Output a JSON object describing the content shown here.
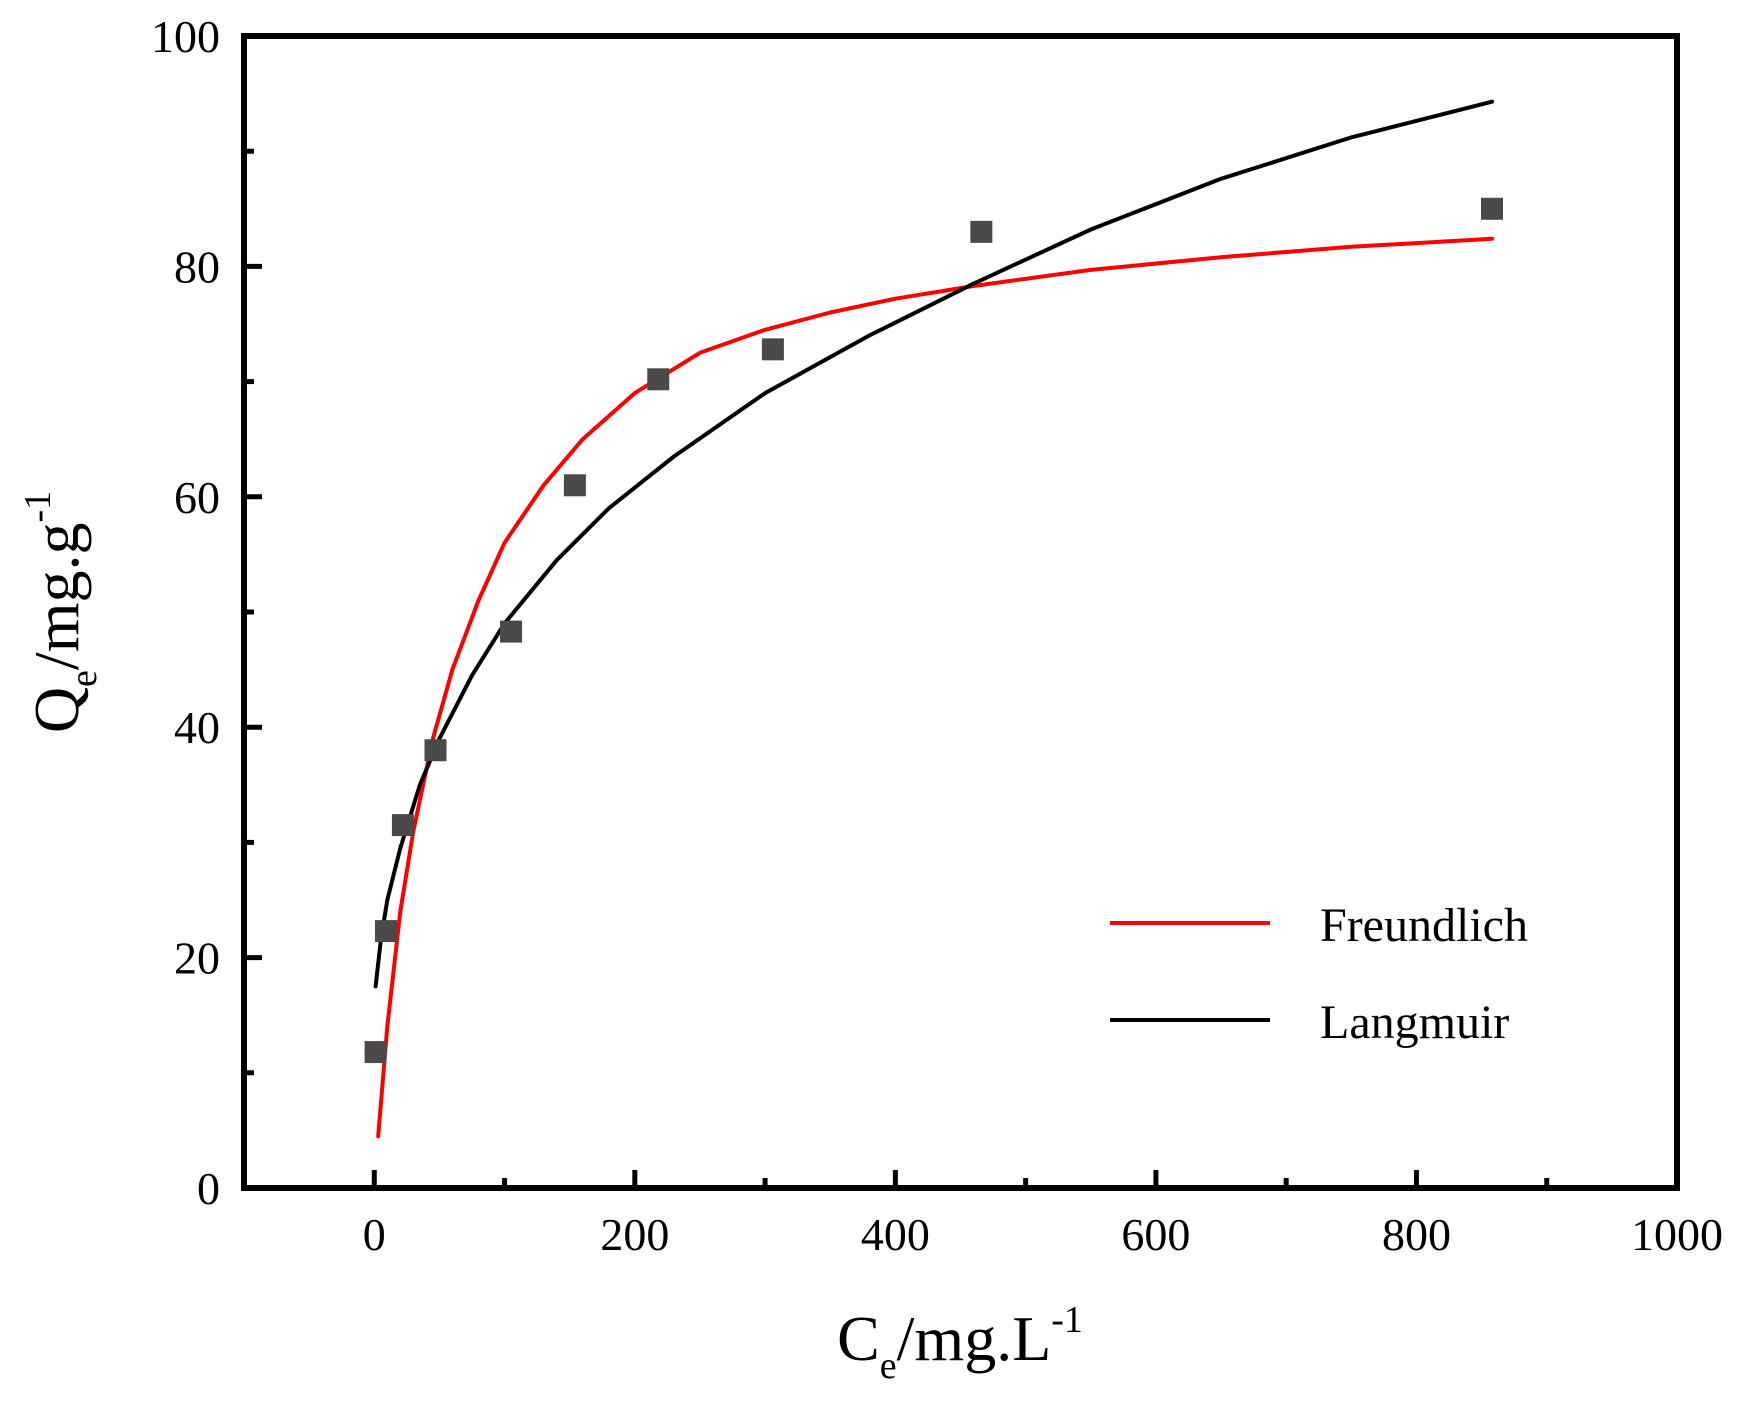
{
  "chart_data": {
    "type": "scatter",
    "title": "",
    "xlabel": {
      "main": "C",
      "sub": "e",
      "rest": "/mg.L",
      "sup": "-1"
    },
    "ylabel": {
      "main": "Q",
      "sub": "e",
      "rest": "/mg.g",
      "sup": "-1"
    },
    "xlim": [
      -100,
      1000
    ],
    "ylim": [
      0,
      100
    ],
    "x_ticks": [
      0,
      200,
      400,
      600,
      800,
      1000
    ],
    "x_tick_labels": [
      "0",
      "200",
      "400",
      "600",
      "800",
      "1000"
    ],
    "x_minor_ticks": [
      100,
      300,
      500,
      700,
      900
    ],
    "y_ticks": [
      0,
      20,
      40,
      60,
      80,
      100
    ],
    "y_tick_labels": [
      "0",
      "20",
      "40",
      "60",
      "80",
      "100"
    ],
    "y_minor_ticks": [
      10,
      30,
      50,
      70,
      90
    ],
    "grid": false,
    "legend_position": "bottom-right",
    "points": {
      "name": "experimental",
      "color": "#4a4a4a",
      "x": [
        1,
        9,
        22,
        47,
        105,
        154,
        218,
        306,
        466,
        858
      ],
      "y": [
        11.8,
        22.3,
        31.5,
        38.0,
        48.3,
        61.0,
        70.2,
        72.8,
        83.0,
        85.0
      ]
    },
    "series": [
      {
        "name": "Freundlich",
        "color": "#ff0000",
        "x": [
          3,
          10,
          20,
          30,
          45,
          60,
          80,
          100,
          130,
          160,
          200,
          250,
          300,
          350,
          400,
          460,
          550,
          650,
          750,
          858
        ],
        "y": [
          4.5,
          14,
          24,
          31,
          39,
          45,
          51,
          56,
          61,
          65,
          69,
          72.5,
          74.5,
          76,
          77.2,
          78.3,
          79.7,
          80.8,
          81.7,
          82.4
        ]
      },
      {
        "name": "Langmuir",
        "color": "#000000",
        "x": [
          1,
          5,
          10,
          20,
          35,
          50,
          75,
          100,
          140,
          180,
          230,
          300,
          380,
          460,
          550,
          650,
          750,
          858
        ],
        "y": [
          17.5,
          21.5,
          25,
          29.5,
          35,
          39,
          44.5,
          49,
          54.5,
          59,
          63.5,
          69,
          74,
          78.5,
          83.2,
          87.6,
          91.2,
          94.3
        ]
      }
    ],
    "legend": [
      "Freundlich",
      "Langmuir"
    ]
  }
}
